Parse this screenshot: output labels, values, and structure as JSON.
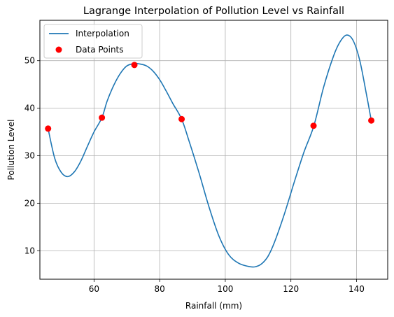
{
  "chart_data": {
    "type": "line",
    "title": "Lagrange Interpolation of Pollution Level vs Rainfall",
    "xlabel": "Rainfall (mm)",
    "ylabel": "Pollution Level",
    "xlim": [
      43.5,
      149.5
    ],
    "ylim": [
      4.0,
      58.5
    ],
    "xticks": [
      60,
      80,
      100,
      120,
      140
    ],
    "yticks": [
      10,
      20,
      30,
      40,
      50
    ],
    "grid": true,
    "legend_position": "top-left",
    "colors": {
      "line": "#1f77b4",
      "points": "#ff0000",
      "grid": "#b0b0b0"
    },
    "series": [
      {
        "name": "Interpolation",
        "type": "line",
        "x": [
          46,
          48,
          50,
          52,
          54,
          56,
          58,
          60,
          62.4,
          64,
          66,
          68,
          70,
          72.3,
          74,
          76,
          78,
          80,
          82,
          84,
          86.7,
          89,
          92,
          95,
          98,
          101,
          104,
          107,
          109,
          111,
          113,
          115,
          118,
          121,
          124,
          127,
          130,
          133,
          135,
          137,
          139,
          141,
          143,
          144.5
        ],
        "y": [
          35.7,
          29.5,
          26.5,
          25.6,
          26.6,
          28.9,
          32.0,
          35.0,
          38.0,
          41.5,
          44.8,
          47.3,
          48.9,
          49.4,
          49.3,
          48.9,
          47.8,
          46.0,
          43.6,
          41.0,
          37.7,
          33.0,
          26.4,
          19.3,
          13.2,
          9.2,
          7.4,
          6.7,
          6.6,
          7.2,
          8.8,
          11.8,
          17.7,
          24.4,
          30.8,
          36.3,
          44.5,
          51.0,
          54.0,
          55.4,
          54.2,
          50.0,
          43.0,
          37.4
        ]
      },
      {
        "name": "Data Points",
        "type": "scatter",
        "x": [
          46,
          62.4,
          72.3,
          86.7,
          126.9,
          144.5
        ],
        "y": [
          35.7,
          38.0,
          49.1,
          37.7,
          36.3,
          37.4
        ]
      }
    ]
  }
}
